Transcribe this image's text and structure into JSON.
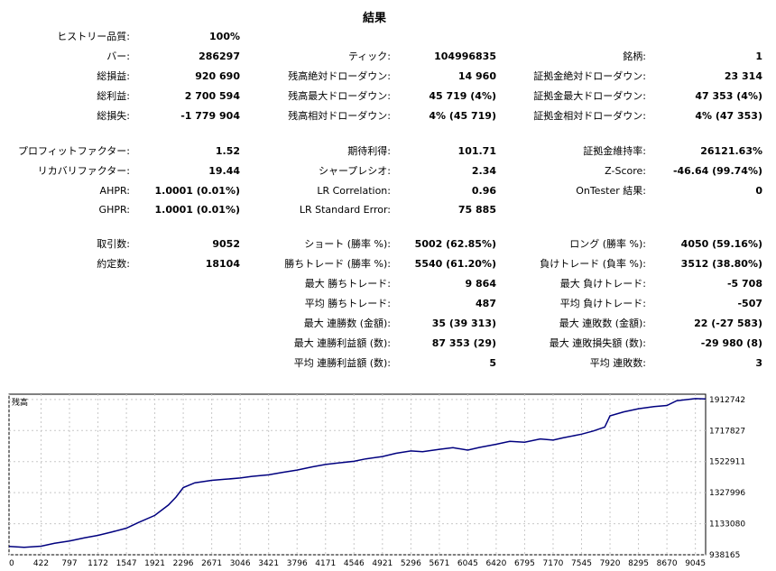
{
  "title": "結果",
  "rows": [
    {
      "top": 34,
      "c1": [
        "ヒストリー品質:",
        "100%"
      ]
    },
    {
      "top": 56,
      "c1": [
        "バー:",
        "286297"
      ],
      "c2": [
        "ティック:",
        "104996835"
      ],
      "c3": [
        "銘柄:",
        "1"
      ]
    },
    {
      "top": 78,
      "c1": [
        "総損益:",
        "920 690"
      ],
      "c2": [
        "残高絶対ドローダウン:",
        "14 960"
      ],
      "c3": [
        "証拠金絶対ドローダウン:",
        "23 314"
      ]
    },
    {
      "top": 100,
      "c1": [
        "総利益:",
        "2 700 594"
      ],
      "c2": [
        "残高最大ドローダウン:",
        "45 719 (4%)"
      ],
      "c3": [
        "証拠金最大ドローダウン:",
        "47 353 (4%)"
      ]
    },
    {
      "top": 122,
      "c1": [
        "総損失:",
        "-1 779 904"
      ],
      "c2": [
        "残高相対ドローダウン:",
        "4% (45 719)"
      ],
      "c3": [
        "証拠金相対ドローダウン:",
        "4% (47 353)"
      ]
    },
    {
      "top": 161,
      "c1": [
        "プロフィットファクター:",
        "1.52"
      ],
      "c2": [
        "期待利得:",
        "101.71"
      ],
      "c3": [
        "証拠金維持率:",
        "26121.63%"
      ]
    },
    {
      "top": 183,
      "c1": [
        "リカバリファクター:",
        "19.44"
      ],
      "c2": [
        "シャープレシオ:",
        "2.34"
      ],
      "c3": [
        "Z-Score:",
        "-46.64 (99.74%)"
      ]
    },
    {
      "top": 205,
      "c1": [
        "AHPR:",
        "1.0001 (0.01%)"
      ],
      "c2": [
        "LR Correlation:",
        "0.96"
      ],
      "c3": [
        "OnTester 結果:",
        "0"
      ]
    },
    {
      "top": 226,
      "c1": [
        "GHPR:",
        "1.0001 (0.01%)"
      ],
      "c2": [
        "LR Standard Error:",
        "75 885"
      ]
    },
    {
      "top": 264,
      "c1": [
        "取引数:",
        "9052"
      ],
      "c2": [
        "ショート (勝率 %):",
        "5002 (62.85%)"
      ],
      "c3": [
        "ロング (勝率 %):",
        "4050 (59.16%)"
      ]
    },
    {
      "top": 286,
      "c1": [
        "約定数:",
        "18104"
      ],
      "c2": [
        "勝ちトレード (勝率 %):",
        "5540 (61.20%)"
      ],
      "c3": [
        "負けトレード (負率 %):",
        "3512 (38.80%)"
      ]
    },
    {
      "top": 308,
      "c2": [
        "最大 勝ちトレード:",
        "9 864"
      ],
      "c3": [
        "最大 負けトレード:",
        "-5 708"
      ]
    },
    {
      "top": 330,
      "c2": [
        "平均 勝ちトレード:",
        "487"
      ],
      "c3": [
        "平均 負けトレード:",
        "-507"
      ]
    },
    {
      "top": 352,
      "c2": [
        "最大 連勝数 (金額):",
        "35 (39 313)"
      ],
      "c3": [
        "最大 連敗数 (金額):",
        "22 (-27 583)"
      ]
    },
    {
      "top": 374,
      "c2": [
        "最大 連勝利益額 (数):",
        "87 353 (29)"
      ],
      "c3": [
        "最大 連敗損失額 (数):",
        "-29 980 (8)"
      ]
    },
    {
      "top": 396,
      "c2": [
        "平均 連勝利益額 (数):",
        "5"
      ],
      "c3": [
        "平均 連敗数:",
        "3"
      ]
    }
  ],
  "chart_data": {
    "type": "line",
    "title": "残高",
    "color": "#00007f",
    "x_ticks": [
      0,
      422,
      797,
      1172,
      1547,
      1921,
      2296,
      2671,
      3046,
      3421,
      3796,
      4171,
      4546,
      4921,
      5296,
      5671,
      6045,
      6420,
      6795,
      7170,
      7545,
      7920,
      8295,
      8670,
      9045
    ],
    "y_ticks": [
      938165,
      1133080,
      1327996,
      1522911,
      1717827,
      1912742
    ],
    "xlim": [
      0,
      9180
    ],
    "ylim": [
      938165,
      1946000
    ],
    "series": [
      {
        "x": [
          0,
          200,
          422,
          600,
          797,
          1000,
          1172,
          1350,
          1547,
          1700,
          1921,
          2100,
          2200,
          2296,
          2450,
          2671,
          2850,
          3046,
          3200,
          3421,
          3600,
          3796,
          4000,
          4171,
          4350,
          4546,
          4700,
          4921,
          5100,
          5296,
          5450,
          5671,
          5850,
          6045,
          6200,
          6420,
          6600,
          6795,
          7000,
          7170,
          7300,
          7545,
          7700,
          7850,
          7900,
          7920,
          8100,
          8295,
          8500,
          8670,
          8800,
          9045,
          9180
        ],
        "y": [
          990000,
          985000,
          992000,
          1010000,
          1025000,
          1045000,
          1060000,
          1080000,
          1105000,
          1140000,
          1185000,
          1250000,
          1300000,
          1360000,
          1390000,
          1405000,
          1412000,
          1420000,
          1430000,
          1440000,
          1455000,
          1470000,
          1490000,
          1505000,
          1515000,
          1525000,
          1540000,
          1555000,
          1575000,
          1590000,
          1585000,
          1600000,
          1610000,
          1595000,
          1612000,
          1632000,
          1650000,
          1645000,
          1665000,
          1658000,
          1672000,
          1695000,
          1715000,
          1740000,
          1790000,
          1810000,
          1835000,
          1855000,
          1868000,
          1875000,
          1905000,
          1918000,
          1916000
        ]
      }
    ]
  }
}
